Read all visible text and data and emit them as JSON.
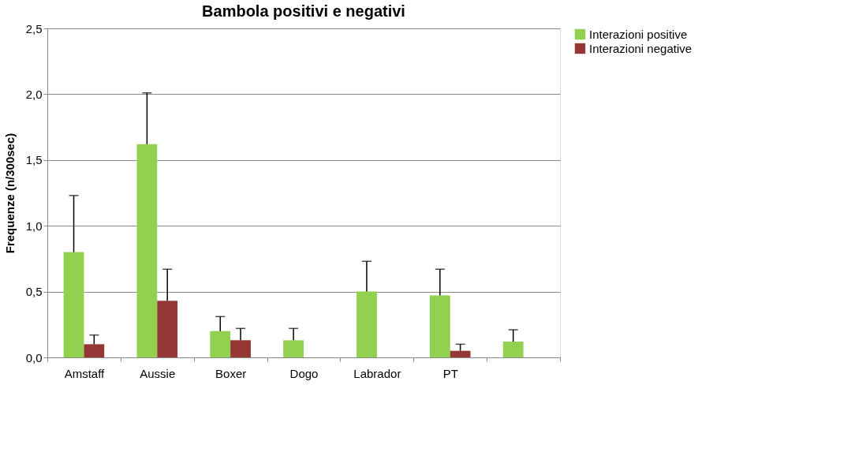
{
  "chart_data": {
    "type": "bar",
    "title": "Bambola positivi e negativi",
    "ylabel": "Frequenze (n/300sec)",
    "categories": [
      "Amstaff",
      "Aussie",
      "Boxer",
      "Dogo",
      "Labrador",
      "PT",
      null
    ],
    "series": [
      {
        "name": "Interazioni positive",
        "color": "#92d050",
        "values": [
          0.8,
          1.62,
          0.2,
          0.13,
          0.5,
          0.47,
          0.12
        ],
        "errors": [
          [
            0.8,
            1.23
          ],
          [
            1.62,
            2.01
          ],
          [
            0.2,
            0.31
          ],
          [
            0.13,
            0.22
          ],
          [
            0.5,
            0.73
          ],
          [
            0.47,
            0.67
          ],
          [
            0.12,
            0.21
          ]
        ]
      },
      {
        "name": "Interazioni negative",
        "color": "#953735",
        "values": [
          0.1,
          0.43,
          0.13,
          0,
          0,
          0.05,
          0
        ],
        "errors": [
          [
            0.1,
            0.17
          ],
          [
            0.43,
            0.67
          ],
          [
            0.13,
            0.22
          ],
          null,
          null,
          [
            0.05,
            0.1
          ],
          null
        ]
      }
    ],
    "ylim": [
      0,
      2.5
    ],
    "yticks": [
      {
        "value": 0,
        "label": "0,0"
      },
      {
        "value": 0.5,
        "label": "0,5"
      },
      {
        "value": 1,
        "label": "1,0"
      },
      {
        "value": 1.5,
        "label": "1,5"
      },
      {
        "value": 2,
        "label": "2,0"
      },
      {
        "value": 2.5,
        "label": "2,5"
      }
    ],
    "grid": "y",
    "legend": "right"
  }
}
